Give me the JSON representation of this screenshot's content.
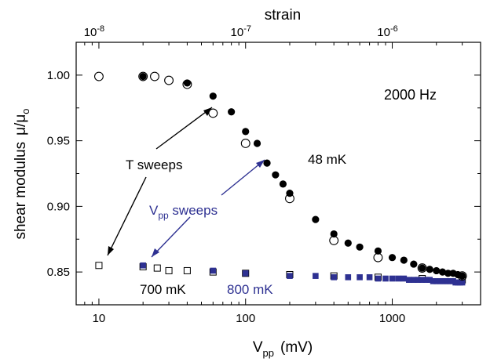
{
  "chart_data": {
    "type": "scatter",
    "xlabel": "V",
    "xlabel_sub": "pp",
    "xlabel_unit": "(mV)",
    "ylabel": "shear modulus",
    "ylabel_symbol": "μ/μ",
    "ylabel_sub": "o",
    "top_axis_label": "strain",
    "x_scale": "log",
    "xlim": [
      7,
      4000
    ],
    "ylim": [
      0.825,
      1.025
    ],
    "x_ticks": [
      10,
      100,
      1000
    ],
    "x_tick_labels": [
      "10",
      "100",
      "1000"
    ],
    "y_ticks": [
      0.85,
      0.9,
      0.95,
      1.0
    ],
    "y_tick_labels": [
      "0.85",
      "0.90",
      "0.95",
      "1.00"
    ],
    "top_axis": {
      "scale": "log",
      "ticks": [
        10,
        100,
        1000
      ],
      "tick_labels": [
        {
          "base": "10",
          "exp": "-8"
        },
        {
          "base": "10",
          "exp": "-7"
        },
        {
          "base": "10",
          "exp": "-6"
        }
      ]
    },
    "grid": false,
    "series": [
      {
        "marker": "filled-circle",
        "color": "#000000",
        "x": [
          20,
          40,
          60,
          80,
          100,
          120,
          140,
          160,
          180,
          200,
          300,
          400,
          500,
          600,
          800,
          1000,
          1200,
          1400,
          1600,
          1800,
          2000,
          2200,
          2400,
          2600,
          2800,
          3000
        ],
        "y": [
          0.999,
          0.994,
          0.984,
          0.972,
          0.957,
          0.948,
          0.933,
          0.924,
          0.917,
          0.91,
          0.89,
          0.879,
          0.872,
          0.869,
          0.866,
          0.861,
          0.859,
          0.856,
          0.853,
          0.852,
          0.851,
          0.85,
          0.849,
          0.849,
          0.848,
          0.847
        ]
      },
      {
        "marker": "open-circle",
        "color": "#000000",
        "x": [
          10,
          20,
          24,
          30,
          40,
          60,
          100,
          200,
          400,
          800,
          1600,
          3000
        ],
        "y": [
          0.999,
          0.999,
          0.999,
          0.996,
          0.993,
          0.971,
          0.948,
          0.906,
          0.874,
          0.861,
          0.853,
          0.847
        ]
      },
      {
        "marker": "open-square",
        "color": "#000000",
        "x": [
          10,
          20,
          25,
          30,
          40,
          60,
          100,
          200,
          400,
          800,
          1600,
          3000
        ],
        "y": [
          0.855,
          0.854,
          0.853,
          0.851,
          0.851,
          0.85,
          0.849,
          0.848,
          0.847,
          0.846,
          0.845,
          0.844
        ]
      },
      {
        "marker": "filled-square",
        "color": "#2e3192",
        "x": [
          20,
          60,
          100,
          200,
          300,
          400,
          500,
          600,
          700,
          800,
          900,
          1000,
          1100,
          1200,
          1300,
          1400,
          1500,
          1600,
          1700,
          1800,
          1900,
          2000,
          2100,
          2200,
          2300,
          2400,
          2500,
          2600,
          2700,
          2800,
          2900,
          3000
        ],
        "y": [
          0.855,
          0.851,
          0.849,
          0.847,
          0.847,
          0.846,
          0.846,
          0.846,
          0.846,
          0.845,
          0.845,
          0.845,
          0.845,
          0.845,
          0.844,
          0.844,
          0.844,
          0.844,
          0.844,
          0.844,
          0.843,
          0.843,
          0.843,
          0.843,
          0.843,
          0.843,
          0.843,
          0.843,
          0.842,
          0.842,
          0.842,
          0.842
        ]
      }
    ],
    "annotations": {
      "freq": "2000 Hz",
      "temp_48": "48 mK",
      "t_sweeps": "T sweeps",
      "vpp_sweeps_v": "V",
      "vpp_sweeps_sub": "pp",
      "vpp_sweeps_rest": " sweeps",
      "temp_700": "700 mK",
      "temp_800": "800 mK"
    },
    "colors": {
      "axis": "#000000",
      "blue": "#2e3192"
    }
  }
}
